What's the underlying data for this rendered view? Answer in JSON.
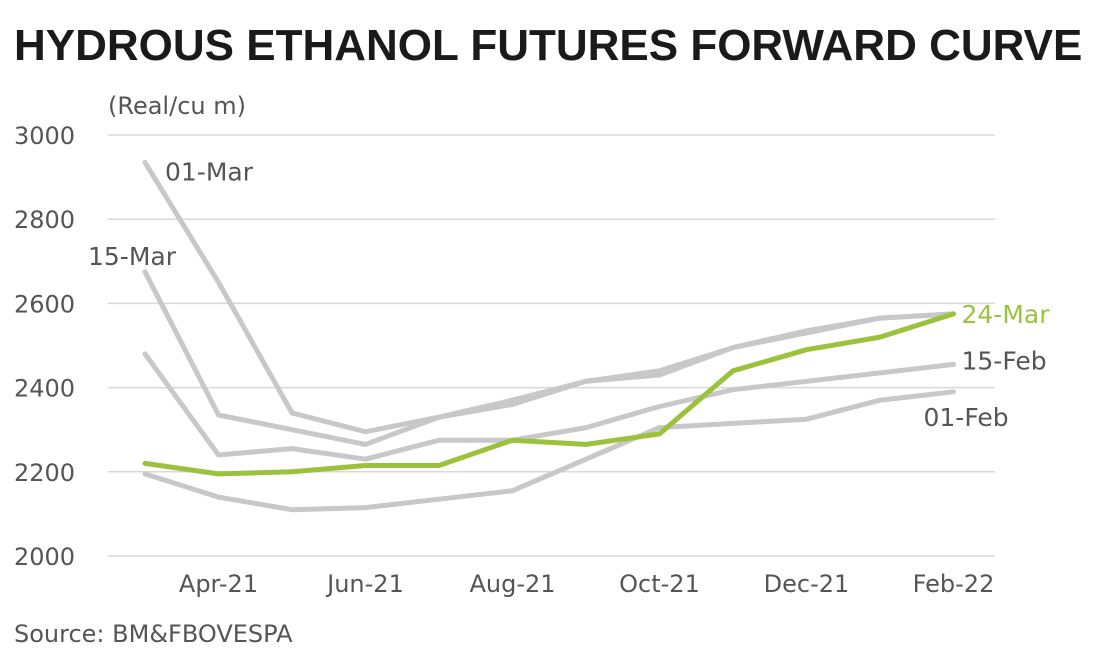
{
  "chart_data": {
    "type": "line",
    "title": "HYDROUS ETHANOL FUTURES FORWARD CURVE",
    "unit_label": "(Real/cu m)",
    "source": "Source: BM&FBOVESPA",
    "x_ticks": [
      "Apr-21",
      "Jun-21",
      "Aug-21",
      "Oct-21",
      "Dec-21",
      "Feb-22"
    ],
    "ylim": [
      2000,
      3000
    ],
    "y_ticks": [
      "2000",
      "2200",
      "2400",
      "2600",
      "2800",
      "3000"
    ],
    "grid": true,
    "x": [
      0,
      1,
      2,
      3,
      4,
      5,
      6,
      7,
      8,
      9,
      10,
      11
    ],
    "series": [
      {
        "name": "01-Mar",
        "color": "#c8c8c8",
        "values": [
          2935,
          2650,
          2340,
          2295,
          2330,
          2370,
          2415,
          2440,
          2495,
          2530,
          2565,
          2575
        ]
      },
      {
        "name": "15-Mar",
        "color": "#c8c8c8",
        "values": [
          2675,
          2335,
          2300,
          2265,
          2330,
          2360,
          2415,
          2430,
          2495,
          2535,
          2565,
          2575
        ]
      },
      {
        "name": "15-Feb",
        "color": "#c8c8c8",
        "values": [
          2480,
          2240,
          2255,
          2230,
          2275,
          2275,
          2305,
          2355,
          2395,
          2415,
          2435,
          2455
        ]
      },
      {
        "name": "01-Feb",
        "color": "#c8c8c8",
        "values": [
          2195,
          2140,
          2110,
          2115,
          2135,
          2155,
          2230,
          2305,
          2315,
          2325,
          2370,
          2390
        ]
      },
      {
        "name": "24-Mar",
        "color": "#9bc23c",
        "values": [
          2220,
          2195,
          2200,
          2215,
          2215,
          2275,
          2265,
          2290,
          2440,
          2490,
          2520,
          2575
        ]
      }
    ]
  }
}
